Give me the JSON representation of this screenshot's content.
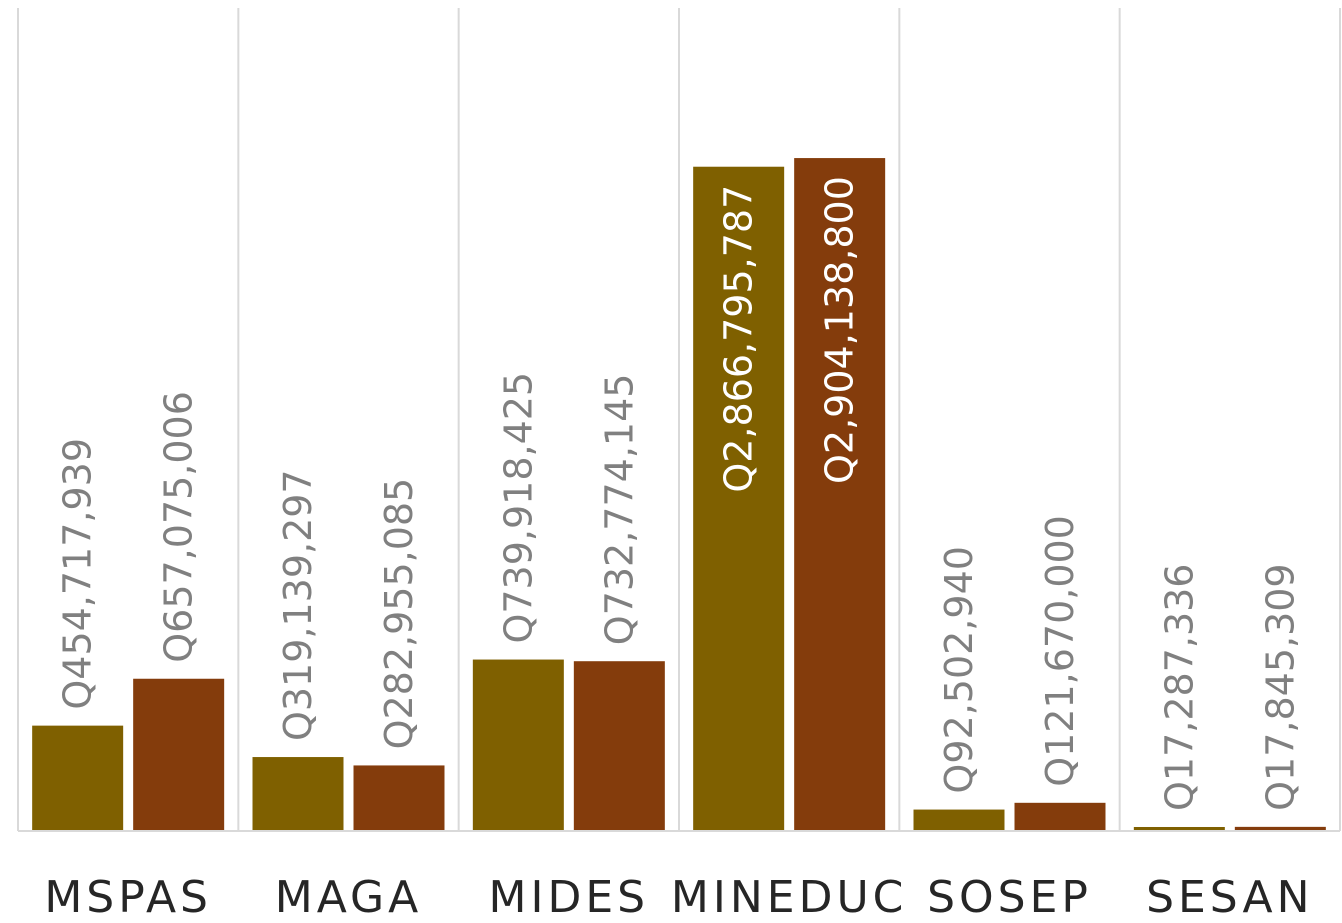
{
  "chart_data": {
    "type": "bar",
    "categories": [
      "MSPAS",
      "MAGA",
      "MIDES",
      "MINEDUC",
      "SOSEP",
      "SESAN"
    ],
    "series": [
      {
        "values": [
          454717939,
          319139297,
          739918425,
          2866795787,
          92502940,
          17287336
        ],
        "labels": [
          "Q454,717,939",
          "Q319,139,297",
          "Q739,918,425",
          "Q2,866,795,787",
          "Q92,502,940",
          "Q17,287,336"
        ],
        "color": "#7F6000"
      },
      {
        "values": [
          657075006,
          282955085,
          732774145,
          2904138800,
          121670000,
          17845309
        ],
        "labels": [
          "Q657,075,006",
          "Q282,955,085",
          "Q732,774,145",
          "Q2,904,138,800",
          "Q121,670,000",
          "Q17,845,309"
        ],
        "color": "#843C0C"
      }
    ],
    "ylim": [
      0,
      3500000000
    ],
    "grid": false,
    "legend": "none",
    "label_color_outside": "#808080",
    "label_color_inside": "#FFFFFF"
  }
}
